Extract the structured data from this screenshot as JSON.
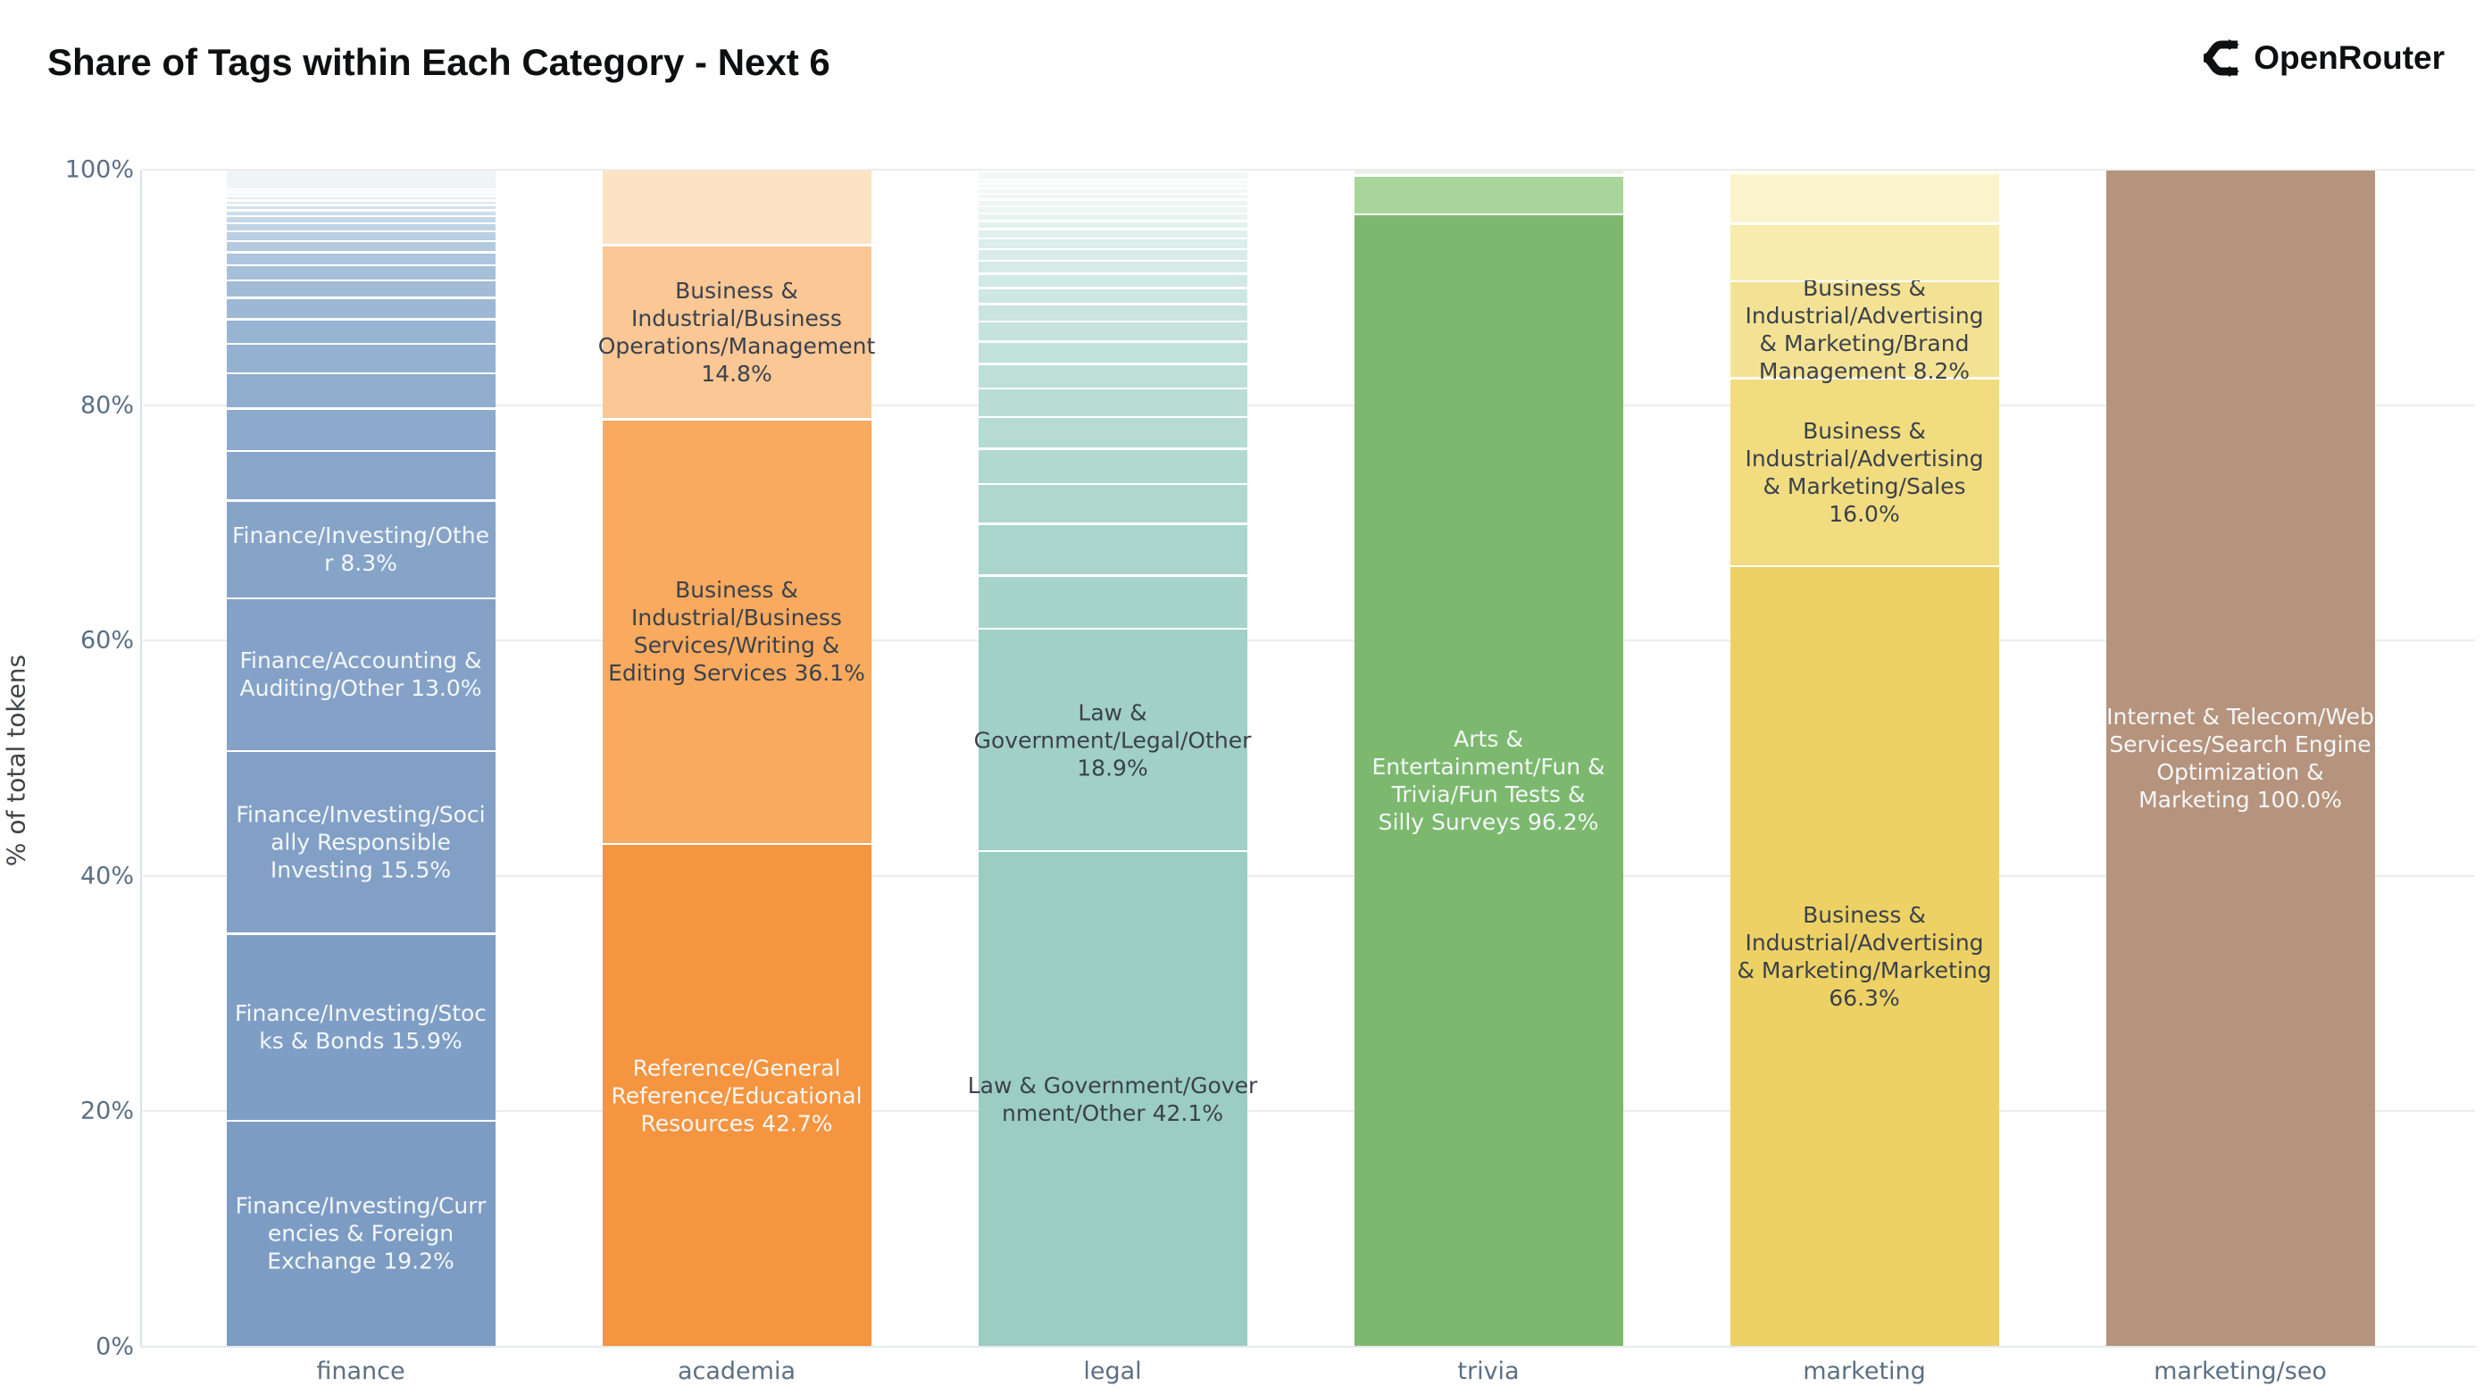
{
  "header": {
    "title": "Share of Tags within Each Category - Next 6",
    "brand": "OpenRouter"
  },
  "chart_data": {
    "type": "bar",
    "stacked": true,
    "orientation": "vertical",
    "title": "Share of Tags within Each Category - Next 6",
    "xlabel": "",
    "ylabel": "% of total tokens",
    "ylim": [
      0,
      100
    ],
    "grid": true,
    "legend": "none",
    "yticks": [
      {
        "label": "0%",
        "pct": 0
      },
      {
        "label": "20%",
        "pct": 20
      },
      {
        "label": "40%",
        "pct": 40
      },
      {
        "label": "60%",
        "pct": 60
      },
      {
        "label": "80%",
        "pct": 80
      },
      {
        "label": "100%",
        "pct": 100
      }
    ],
    "categories": [
      "finance",
      "academia",
      "legal",
      "trivia",
      "marketing",
      "marketing/seo"
    ],
    "bars": [
      {
        "category": "finance",
        "segments": [
          {
            "value": 19.2,
            "label": "Finance/Investing/Currencies & Foreign Exchange 19.2%",
            "lines": [
              "Finance/Investing/Curr",
              "encies & Foreign",
              "Exchange 19.2%"
            ],
            "color": "#7d9cc3",
            "text": "light"
          },
          {
            "value": 15.9,
            "label": "Finance/Investing/Stocks & Bonds 15.9%",
            "lines": [
              "Finance/Investing/Stoc",
              "ks & Bonds 15.9%"
            ],
            "color": "#7f9ec5",
            "text": "light"
          },
          {
            "value": 15.5,
            "label": "Finance/Investing/Socially Responsible Investing 15.5%",
            "lines": [
              "Finance/Investing/Soci",
              "ally Responsible",
              "Investing 15.5%"
            ],
            "color": "#82a0c6",
            "text": "light"
          },
          {
            "value": 13.0,
            "label": "Finance/Accounting & Auditing/Other 13.0%",
            "lines": [
              "Finance/Accounting &",
              "Auditing/Other 13.0%"
            ],
            "color": "#84a2c7",
            "text": "light"
          },
          {
            "value": 8.3,
            "label": "Finance/Investing/Other 8.3%",
            "lines": [
              "Finance/Investing/Othe",
              "r 8.3%"
            ],
            "color": "#86a4c8",
            "text": "light"
          },
          {
            "value": 4.2,
            "color": "#89a7ca"
          },
          {
            "value": 3.6,
            "color": "#8caacc"
          },
          {
            "value": 3.0,
            "color": "#90adce"
          },
          {
            "value": 2.5,
            "color": "#94b1d1"
          },
          {
            "value": 2.1,
            "color": "#98b4d3"
          },
          {
            "value": 1.8,
            "color": "#9db8d5"
          },
          {
            "value": 1.5,
            "color": "#a2bcd8"
          },
          {
            "value": 1.3,
            "color": "#a7c0da"
          },
          {
            "value": 1.1,
            "color": "#adc5dd"
          },
          {
            "value": 0.95,
            "color": "#b3c9df"
          },
          {
            "value": 0.8,
            "color": "#b9cee2"
          },
          {
            "value": 0.7,
            "color": "#bfd3e5"
          },
          {
            "value": 0.6,
            "color": "#c6d8e8"
          },
          {
            "value": 0.5,
            "color": "#cdddea"
          },
          {
            "value": 0.45,
            "color": "#d4e2ed"
          },
          {
            "value": 0.4,
            "color": "#dbe7f0"
          },
          {
            "value": 0.35,
            "color": "#e2ecf3"
          },
          {
            "value": 0.3,
            "color": "#e9f1f5"
          },
          {
            "value": 0.25,
            "color": "#f0f5f8"
          },
          {
            "value": 1.7,
            "color": "#eff4f7"
          }
        ]
      },
      {
        "category": "academia",
        "segments": [
          {
            "value": 42.7,
            "label": "Reference/General Reference/Educational Resources 42.7%",
            "lines": [
              "Reference/General",
              "Reference/Educational",
              "Resources 42.7%"
            ],
            "color": "#f6953f",
            "text": "light"
          },
          {
            "value": 36.1,
            "label": "Business & Industrial/Business Services/Writing & Editing Services 36.1%",
            "lines": [
              "Business &",
              "Industrial/Business",
              "Services/Writing &",
              "Editing Services 36.1%"
            ],
            "color": "#f9aa5e",
            "text": "dark"
          },
          {
            "value": 14.8,
            "label": "Business & Industrial/Business Operations/Management 14.8%",
            "lines": [
              "Business &",
              "Industrial/Business",
              "Operations/Management",
              "14.8%"
            ],
            "color": "#fac795",
            "text": "dark"
          },
          {
            "value": 6.4,
            "color": "#fde3c4"
          }
        ]
      },
      {
        "category": "legal",
        "segments": [
          {
            "value": 42.1,
            "label": "Law & Government/Government/Other 42.1%",
            "lines": [
              "Law & Government/Gover",
              "nment/Other 42.1%"
            ],
            "color": "#9bcdc2",
            "text": "dark"
          },
          {
            "value": 18.9,
            "label": "Law & Government/Legal/Other 18.9%",
            "lines": [
              "Law &",
              "Government/Legal/Other",
              "18.9%"
            ],
            "color": "#a0d0c6",
            "text": "dark"
          },
          {
            "value": 4.5,
            "color": "#a7d4ca"
          },
          {
            "value": 4.4,
            "color": "#aad5cc"
          },
          {
            "value": 3.4,
            "color": "#aed7ce"
          },
          {
            "value": 3.0,
            "color": "#b1d9d0"
          },
          {
            "value": 2.7,
            "color": "#b5dbd3"
          },
          {
            "value": 2.4,
            "color": "#b9ddd5"
          },
          {
            "value": 2.1,
            "color": "#bddfd7"
          },
          {
            "value": 1.9,
            "color": "#c1e1da"
          },
          {
            "value": 1.7,
            "color": "#c5e3dc"
          },
          {
            "value": 1.5,
            "color": "#c9e5de"
          },
          {
            "value": 1.35,
            "color": "#cde7e1"
          },
          {
            "value": 1.2,
            "color": "#d1e9e3"
          },
          {
            "value": 1.1,
            "color": "#d5ebe5"
          },
          {
            "value": 1.0,
            "color": "#d9ece8"
          },
          {
            "value": 0.9,
            "color": "#ddeeea"
          },
          {
            "value": 0.8,
            "color": "#e1f0ec"
          },
          {
            "value": 0.7,
            "color": "#e4f2ee"
          },
          {
            "value": 0.65,
            "color": "#e8f4f0"
          },
          {
            "value": 0.6,
            "color": "#ebf5f2"
          },
          {
            "value": 0.55,
            "color": "#eef6f3"
          },
          {
            "value": 0.5,
            "color": "#f0f7f5"
          },
          {
            "value": 0.45,
            "color": "#f2f8f6"
          },
          {
            "value": 0.4,
            "color": "#f4f9f7"
          },
          {
            "value": 0.35,
            "color": "#f6faf8"
          },
          {
            "value": 0.7,
            "color": "#f3f8f6"
          }
        ]
      },
      {
        "category": "trivia",
        "segments": [
          {
            "value": 96.2,
            "label": "Arts & Entertainment/Fun & Trivia/Fun Tests & Silly Surveys 96.2%",
            "lines": [
              "Arts &",
              "Entertainment/Fun &",
              "Trivia/Fun Tests &",
              "Silly Surveys 96.2%"
            ],
            "color": "#7cb96e",
            "text": "light"
          },
          {
            "value": 3.3,
            "color": "#a9d49c"
          },
          {
            "value": 0.5,
            "color": "#e9f3e5"
          }
        ]
      },
      {
        "category": "marketing",
        "segments": [
          {
            "value": 66.3,
            "label": "Business & Industrial/Advertising & Marketing/Marketing 66.3%",
            "lines": [
              "Business &",
              "Industrial/Advertising",
              "& Marketing/Marketing",
              "66.3%"
            ],
            "color": "#edd164",
            "text": "dark"
          },
          {
            "value": 16.0,
            "label": "Business & Industrial/Advertising & Marketing/Sales 16.0%",
            "lines": [
              "Business &",
              "Industrial/Advertising",
              "& Marketing/Sales",
              "16.0%"
            ],
            "color": "#f1dc80",
            "text": "dark"
          },
          {
            "value": 8.2,
            "label": "Business & Industrial/Advertising & Marketing/Brand Management 8.2%",
            "lines": [
              "Business &",
              "Industrial/Advertising",
              "& Marketing/Brand",
              "Management 8.2%"
            ],
            "color": "#f4e294",
            "text": "dark"
          },
          {
            "value": 4.9,
            "color": "#f7ecae"
          },
          {
            "value": 4.3,
            "color": "#fbf3cc"
          },
          {
            "value": 0.3,
            "color": "#fefbef"
          }
        ]
      },
      {
        "category": "marketing/seo",
        "segments": [
          {
            "value": 100.0,
            "label": "Internet & Telecom/Web Services/Search Engine Optimization & Marketing 100.0%",
            "lines": [
              "Internet & Telecom/Web",
              "Services/Search Engine",
              "Optimization &",
              "Marketing 100.0%"
            ],
            "color": "#b6937c",
            "text": "light"
          }
        ]
      }
    ]
  }
}
